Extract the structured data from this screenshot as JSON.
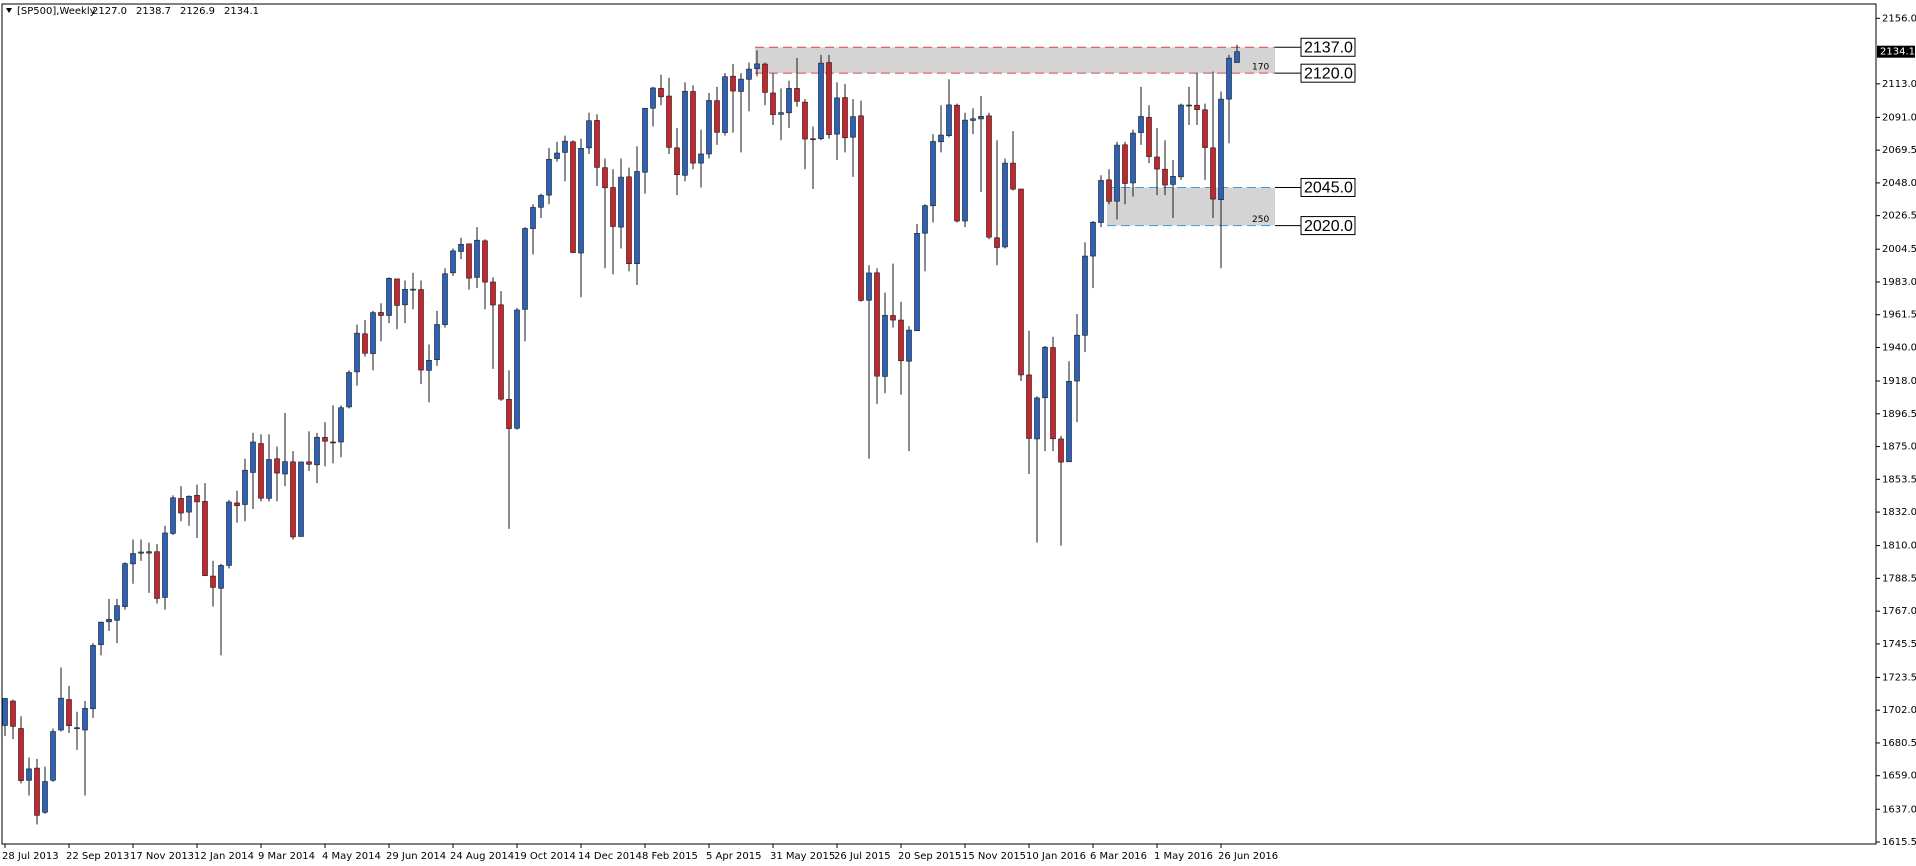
{
  "chart_data": {
    "type": "candlestick",
    "title": "[SP500],Weekly",
    "info_labels": [
      "2127.0",
      "2138.7",
      "2126.9",
      "2134.1"
    ],
    "categories": [
      "28 Jul 2013",
      null,
      null,
      null,
      null,
      null,
      null,
      null,
      "22 Sep 2013",
      null,
      null,
      null,
      null,
      null,
      null,
      null,
      "17 Nov 2013",
      null,
      null,
      null,
      null,
      null,
      null,
      null,
      "12 Jan 2014",
      null,
      null,
      null,
      null,
      null,
      null,
      null,
      "9 Mar 2014",
      null,
      null,
      null,
      null,
      null,
      null,
      null,
      "4 May 2014",
      null,
      null,
      null,
      null,
      null,
      null,
      null,
      "29 Jun 2014",
      null,
      null,
      null,
      null,
      null,
      null,
      null,
      "24 Aug 2014",
      null,
      null,
      null,
      null,
      null,
      null,
      null,
      "19 Oct 2014",
      null,
      null,
      null,
      null,
      null,
      null,
      null,
      "14 Dec 2014",
      null,
      null,
      null,
      null,
      null,
      null,
      null,
      "8 Feb 2015",
      null,
      null,
      null,
      null,
      null,
      null,
      null,
      "5 Apr 2015",
      null,
      null,
      null,
      null,
      null,
      null,
      null,
      "31 May 2015",
      null,
      null,
      null,
      null,
      null,
      null,
      null,
      "26 Jul 2015",
      null,
      null,
      null,
      null,
      null,
      null,
      null,
      "20 Sep 2015",
      null,
      null,
      null,
      null,
      null,
      null,
      null,
      "15 Nov 2015",
      null,
      null,
      null,
      null,
      null,
      null,
      null,
      "10 Jan 2016",
      null,
      null,
      null,
      null,
      null,
      null,
      null,
      "6 Mar 2016",
      null,
      null,
      null,
      null,
      null,
      null,
      null,
      "1 May 2016",
      null,
      null,
      null,
      null,
      null,
      null,
      null,
      "26 Jun 2016",
      null,
      null
    ],
    "open": [
      1692,
      1708,
      1690,
      1656,
      1664,
      1635,
      1656,
      1689,
      1709,
      1690,
      1689,
      1703,
      1745,
      1760,
      1761,
      1770,
      1798,
      1805,
      1806,
      1806,
      1776,
      1818,
      1841,
      1832,
      1843,
      1839,
      1790,
      1782,
      1797,
      1838,
      1837,
      1858,
      1877,
      1841,
      1867,
      1857,
      1865,
      1816,
      1865,
      1863,
      1881,
      1878,
      1878,
      1901,
      1924,
      1949,
      1936,
      1963,
      1961,
      1985,
      1968,
      1978,
      1978,
      1925,
      1932,
      1955,
      1989,
      2003,
      2008,
      1986,
      2010,
      1983,
      1968,
      1906,
      1887,
      1965,
      2018,
      2032,
      2040,
      2064,
      2068,
      2075,
      2002,
      2071,
      2089,
      2058,
      2045,
      2019,
      2052,
      1995,
      2055,
      2097,
      2110,
      2105,
      2071,
      2053,
      2108,
      2061,
      2067,
      2102,
      2081,
      2118,
      2108,
      2116,
      2123,
      2126,
      2107,
      2093,
      2094,
      2110,
      2101,
      2077,
      2077,
      2127,
      2080,
      2104,
      2078,
      2092,
      1971,
      1989,
      1921,
      1961,
      1958,
      1931,
      1951,
      2015,
      2033,
      2075,
      2079,
      2099,
      2023,
      2089,
      2090,
      2092,
      2012,
      2006,
      2061,
      2044,
      1922,
      1880,
      1907,
      1940,
      1880,
      1865,
      1918,
      1948,
      2000,
      2022,
      2050,
      2036,
      2073,
      2048,
      2081,
      2091,
      2065,
      2057,
      2047,
      2052,
      2099,
      2099,
      2096,
      2071,
      2037,
      2103,
      2127.0
    ],
    "high": [
      1710,
      1709,
      1698,
      1671,
      1670,
      1665,
      1690,
      1730,
      1718,
      1701,
      1708,
      1746,
      1760,
      1775,
      1775,
      1799,
      1814,
      1814,
      1812,
      1811,
      1823,
      1843,
      1849,
      1843,
      1850,
      1851,
      1800,
      1798,
      1840,
      1846,
      1867,
      1884,
      1883,
      1883,
      1875,
      1897,
      1872,
      1865,
      1885,
      1884,
      1891,
      1902,
      1902,
      1925,
      1955,
      1958,
      1964,
      1969,
      1986,
      1985,
      1984,
      1989,
      1984,
      1942,
      1964,
      1992,
      2005,
      2012,
      2008,
      2019,
      2011,
      1986,
      1977,
      1925,
      1966,
      2019,
      2034,
      2041,
      2071,
      2075,
      2079,
      2076,
      2077,
      2094,
      2093,
      2064,
      2057,
      2064,
      2058,
      2072,
      2097,
      2111,
      2119,
      2117,
      2084,
      2114,
      2112,
      2083,
      2107,
      2111,
      2120,
      2126,
      2120,
      2127,
      2135,
      2127,
      2120,
      2110,
      2115,
      2130,
      2103,
      2085,
      2132,
      2132,
      2114,
      2113,
      2103,
      2102,
      1994,
      1992,
      1976,
      1995,
      1970,
      1954,
      2021,
      2034,
      2080,
      2099,
      2116,
      2100,
      2094,
      2097,
      2105,
      2094,
      2076,
      2064,
      2082,
      2044,
      1951,
      1908,
      1941,
      1947,
      1882,
      1931,
      1962,
      2009,
      2023,
      2053,
      2057,
      2075,
      2075,
      2083,
      2111,
      2099,
      2084,
      2076,
      2063,
      2100,
      2111,
      2120,
      2100,
      2121,
      2108,
      2132,
      2138.7
    ],
    "low": [
      1685,
      1683,
      1654,
      1646,
      1627,
      1634,
      1655,
      1688,
      1687,
      1676,
      1646,
      1697,
      1738,
      1754,
      1746,
      1768,
      1785,
      1800,
      1779,
      1772,
      1768,
      1817,
      1826,
      1823,
      1815,
      1790,
      1770,
      1738,
      1795,
      1825,
      1826,
      1834,
      1839,
      1839,
      1839,
      1849,
      1814,
      1816,
      1859,
      1851,
      1862,
      1864,
      1868,
      1900,
      1915,
      1934,
      1925,
      1944,
      1956,
      1952,
      1956,
      1965,
      1916,
      1904,
      1928,
      1953,
      1987,
      1998,
      1978,
      1979,
      1965,
      1926,
      1905,
      1821,
      1886,
      1944,
      2001,
      2025,
      2034,
      2062,
      2049,
      2002,
      1973,
      2067,
      2046,
      1992,
      1988,
      2005,
      1990,
      1981,
      2041,
      2085,
      2099,
      2067,
      2040,
      2049,
      2057,
      2045,
      2064,
      2073,
      2079,
      2081,
      2068,
      2095,
      2118,
      2099,
      2086,
      2076,
      2084,
      2098,
      2057,
      2044,
      2076,
      2077,
      2063,
      2068,
      2052,
      1970,
      1867,
      1903,
      1910,
      1953,
      1909,
      1872,
      1951,
      1990,
      2022,
      2068,
      2078,
      2022,
      2019,
      2080,
      2042,
      2011,
      1994,
      2005,
      2043,
      1918,
      1857,
      1812,
      1872,
      1872,
      1810,
      1865,
      1891,
      1937,
      1979,
      2019,
      2034,
      2024,
      2034,
      2039,
      2073,
      2061,
      2040,
      2040,
      2025,
      2050,
      2086,
      2086,
      2050,
      2025,
      1992,
      2074,
      2126.9
    ],
    "close": [
      1709.7,
      1691.4,
      1655.8,
      1663.5,
      1633.0,
      1655.2,
      1688.0,
      1709.9,
      1691.8,
      1690.5,
      1703.2,
      1744.5,
      1759.8,
      1761.6,
      1770.6,
      1798.2,
      1804.8,
      1805.8,
      1805.1,
      1775.3,
      1818.3,
      1841.4,
      1831.4,
      1842.4,
      1838.7,
      1790.3,
      1782.6,
      1797.0,
      1838.6,
      1836.2,
      1859.5,
      1878.0,
      1841.1,
      1866.5,
      1857.6,
      1865.1,
      1815.7,
      1864.9,
      1863.4,
      1881.1,
      1878.5,
      1877.9,
      1900.5,
      1923.6,
      1949.4,
      1936.2,
      1962.9,
      1961.0,
      1985.4,
      1967.6,
      1978.2,
      1978.3,
      1925.2,
      1931.6,
      1955.1,
      1988.4,
      2003.4,
      2007.7,
      1985.5,
      2010.4,
      1982.9,
      1967.9,
      1906.1,
      1886.8,
      1964.6,
      2018.1,
      2031.9,
      2039.8,
      2063.5,
      2067.6,
      2075.4,
      2002.3,
      2070.7,
      2088.8,
      2058.2,
      2044.8,
      2019.4,
      2051.8,
      1995.0,
      2055.5,
      2097.0,
      2110.3,
      2104.5,
      2071.3,
      2053.4,
      2108.1,
      2061.0,
      2067.0,
      2102.1,
      2081.2,
      2117.7,
      2108.3,
      2116.1,
      2122.7,
      2126.1,
      2107.4,
      2092.8,
      2094.1,
      2110.0,
      2101.5,
      2076.8,
      2076.6,
      2126.6,
      2079.7,
      2103.8,
      2077.6,
      2091.5,
      1970.9,
      1988.9,
      1921.2,
      1961.1,
      1958.0,
      1931.3,
      1951.4,
      2014.9,
      2033.1,
      2075.2,
      2079.4,
      2099.2,
      2023.0,
      2089.2,
      2090.1,
      2091.7,
      2012.4,
      2005.6,
      2061.0,
      2043.9,
      1922.0,
      1880.3,
      1906.9,
      1940.2,
      1880.1,
      1864.8,
      1917.8,
      1948.1,
      2000.0,
      2022.2,
      2049.6,
      2035.9,
      2072.8,
      2047.6,
      2080.7,
      2091.6,
      2065.3,
      2057.1,
      2046.6,
      2052.3,
      2099.1,
      2099.1,
      2096.1,
      2071.2,
      2037.4,
      2103.0,
      2129.9,
      2134.1
    ],
    "up_color": "#2b62b8",
    "down_color": "#c4262e",
    "wick_color": "#1a1a1a",
    "ylim": [
      1614.2,
      2165.4
    ],
    "yticks": [
      {
        "value": 2156,
        "label": "2156.0"
      },
      {
        "value": 2113,
        "label": "2113.0"
      },
      {
        "value": 2091,
        "label": "2091.0"
      },
      {
        "value": 2069.5,
        "label": "2069.5"
      },
      {
        "value": 2048,
        "label": "2048.0"
      },
      {
        "value": 2026.5,
        "label": "2026.5"
      },
      {
        "value": 2004.5,
        "label": "2004.5"
      },
      {
        "value": 1983,
        "label": "1983.0"
      },
      {
        "value": 1961.5,
        "label": "1961.5"
      },
      {
        "value": 1940,
        "label": "1940.0"
      },
      {
        "value": 1918,
        "label": "1918.0"
      },
      {
        "value": 1896.5,
        "label": "1896.5"
      },
      {
        "value": 1875,
        "label": "1875.0"
      },
      {
        "value": 1853.5,
        "label": "1853.5"
      },
      {
        "value": 1832,
        "label": "1832.0"
      },
      {
        "value": 1810,
        "label": "1810.0"
      },
      {
        "value": 1788.5,
        "label": "1788.5"
      },
      {
        "value": 1767,
        "label": "1767.0"
      },
      {
        "value": 1745.5,
        "label": "1745.5"
      },
      {
        "value": 1723.5,
        "label": "1723.5"
      },
      {
        "value": 1702,
        "label": "1702.0"
      },
      {
        "value": 1680.5,
        "label": "1680.5"
      },
      {
        "value": 1659,
        "label": "1659.0"
      },
      {
        "value": 1637,
        "label": "1637.0"
      },
      {
        "value": 1615.5,
        "label": "1615.5"
      }
    ],
    "last_price": {
      "value": 2134.1,
      "label": "2134.1"
    },
    "zones": [
      {
        "top": {
          "value": 2137,
          "label": "2137.0"
        },
        "bottom": {
          "value": 2120,
          "label": "2120.0"
        },
        "size": 170,
        "color": "#d4d4d4",
        "line_color": "#e0434a"
      },
      {
        "top": {
          "value": 2045,
          "label": "2045.0"
        },
        "bottom": {
          "value": 2020,
          "label": "2020.0"
        },
        "size": 250,
        "color": "#d4d4d4",
        "line_color": "#3b9ae0"
      }
    ]
  }
}
